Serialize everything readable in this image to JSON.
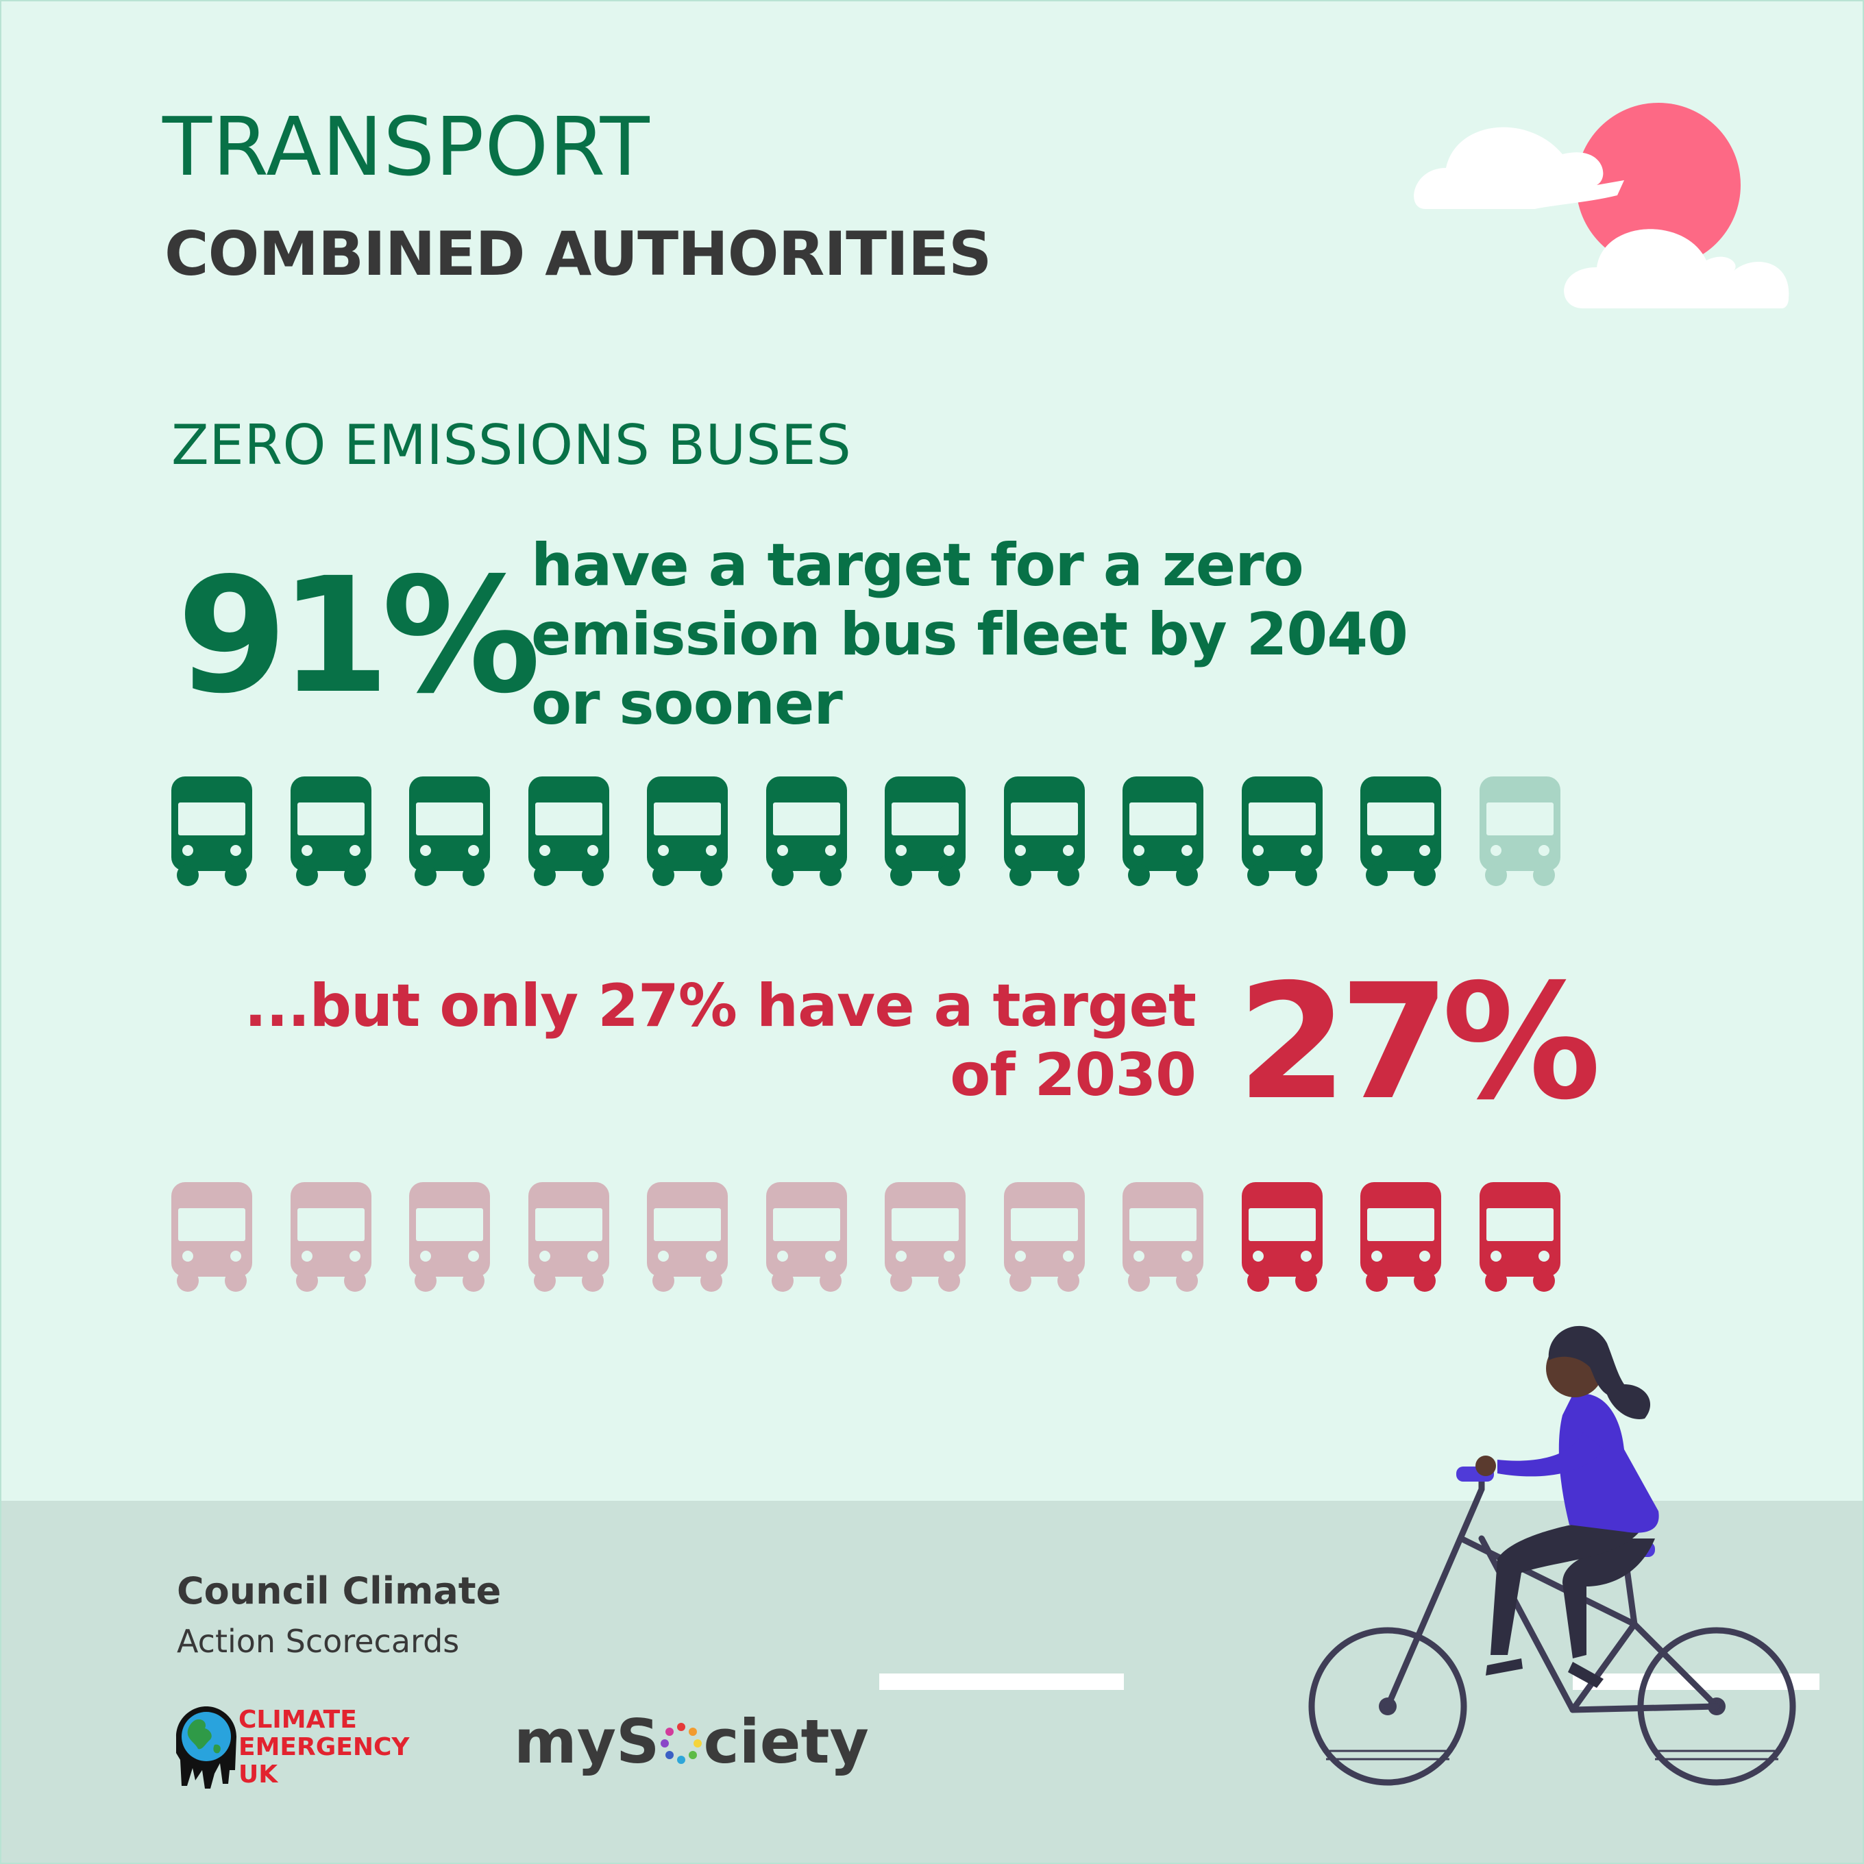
{
  "heading": {
    "title": "TRANSPORT",
    "subtitle": "COMBINED AUTHORITIES"
  },
  "section": {
    "title": "ZERO EMISSIONS BUSES"
  },
  "stat1": {
    "value": "91%",
    "description": "have a target for a zero emission bus fleet by 2040 or sooner",
    "line1": "have a target for a zero",
    "line2": "emission bus fleet by 2040",
    "line3": "or sooner",
    "icons_total": 12,
    "icons_filled": 11,
    "color": "#087147",
    "faded_color": "#a9d5c5"
  },
  "stat2": {
    "value": "27%",
    "description": "...but only 27% have a target of 2030",
    "line1": "...but only 27% have a target",
    "line2": "of 2030",
    "icons_total": 12,
    "icons_filled": 3,
    "color": "#cd2a42",
    "faded_color": "#d4b4ba"
  },
  "branding": {
    "title": "Council Climate",
    "subtitle": "Action Scorecards",
    "ceuk_line1": "CLIMATE",
    "ceuk_line2": "EMERGENCY",
    "ceuk_line3": "UK",
    "mysociety_pre": "myS",
    "mysociety_post": "ciety"
  },
  "icons": [
    "sun-icon",
    "cloud-icon",
    "bus-icon",
    "earth-icon",
    "cyclist-illustration"
  ]
}
